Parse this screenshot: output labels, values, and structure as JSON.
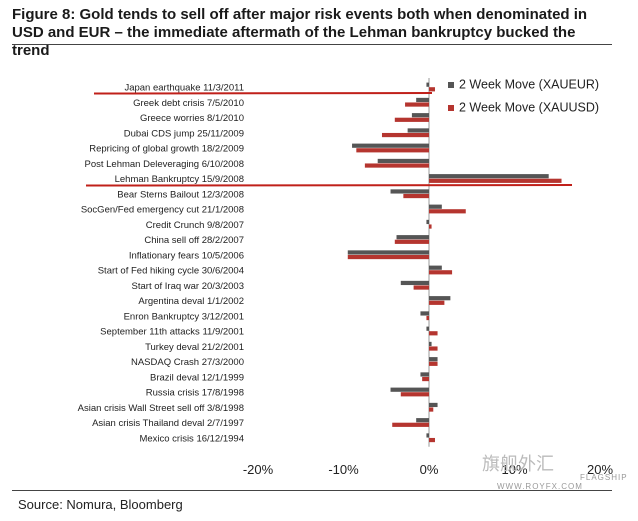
{
  "title": "Figure 8: Gold tends to sell off after major risk events both when denominated in USD and EUR – the immediate aftermath of the Lehman bankruptcy bucked the trend",
  "source": "Source: Nomura, Bloomberg",
  "watermark": {
    "cn": "旗舰外汇",
    "tag": "FLAGSHIP",
    "url": "WWW.ROYFX.COM"
  },
  "colors": {
    "xaueur": "#555555",
    "xauusd": "#b5352f",
    "highlight": "#c0201a"
  },
  "chart_data": {
    "type": "bar",
    "orientation": "horizontal",
    "categories": [
      "Japan earthquake 11/3/2011",
      "Greek debt crisis 7/5/2010",
      "Greece worries 8/1/2010",
      "Dubai CDS jump 25/11/2009",
      "Repricing of global  growth 18/2/2009",
      "Post Lehman Deleveraging 6/10/2008",
      "Lehman Bankruptcy 15/9/2008",
      "Bear Sterns Bailout 12/3/2008",
      "SocGen/Fed emergency cut 21/1/2008",
      "Credit Crunch 9/8/2007",
      "China sell off 28/2/2007",
      "Inflationary fears 10/5/2006",
      "Start of Fed hiking cycle 30/6/2004",
      "Start of Iraq war 20/3/2003",
      "Argentina deval 1/1/2002",
      "Enron Bankruptcy 3/12/2001",
      "September 11th attacks 11/9/2001",
      "Turkey deval 21/2/2001",
      "NASDAQ Crash 27/3/2000",
      "Brazil deval 12/1/1999",
      "Russia crisis 17/8/1998",
      "Asian crisis Wall Street sell off 3/8/1998",
      "Asian crisis Thailand  deval 2/7/1997",
      "Mexico crisis 16/12/1994"
    ],
    "series": [
      {
        "name": "2 Week Move (XAUEUR)",
        "values": [
          -0.3,
          -1.5,
          -2.0,
          -2.5,
          -9.0,
          -6.0,
          14.0,
          -4.5,
          1.5,
          -0.3,
          -3.8,
          -9.5,
          1.5,
          -3.3,
          2.5,
          -1.0,
          -0.3,
          0.3,
          1.0,
          -1.0,
          -4.5,
          1.0,
          -1.5,
          -0.3
        ]
      },
      {
        "name": "2 Week Move (XAUUSD)",
        "values": [
          0.7,
          -2.8,
          -4.0,
          -5.5,
          -8.5,
          -7.5,
          15.5,
          -3.0,
          4.3,
          0.3,
          -4.0,
          -9.5,
          2.7,
          -1.8,
          1.8,
          -0.3,
          1.0,
          1.0,
          1.0,
          -0.8,
          -3.3,
          0.5,
          -4.3,
          0.7
        ]
      }
    ],
    "x_ticks": [
      "-20%",
      "-10%",
      "0%",
      "10%",
      "20%"
    ],
    "xlim": [
      -20,
      20
    ],
    "legend": "top-right",
    "grid": false
  }
}
